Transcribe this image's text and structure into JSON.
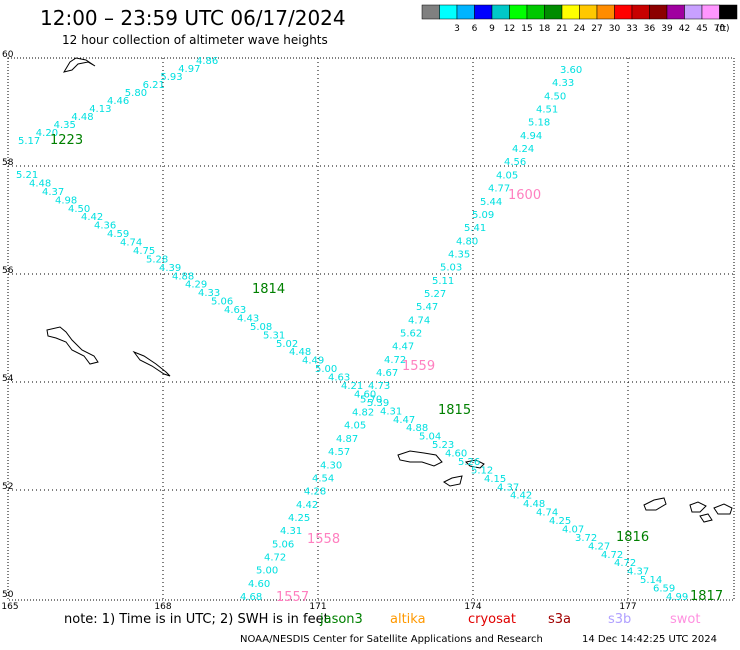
{
  "header": {
    "title": "12:00 – 23:59 UTC 06/17/2024",
    "subtitle": "12 hour collection of altimeter wave heights"
  },
  "legend": {
    "unit": "(ft)",
    "bins": [
      {
        "label": "",
        "color": "#808080"
      },
      {
        "label": "3",
        "color": "#00ffff"
      },
      {
        "label": "6",
        "color": "#00b4ff"
      },
      {
        "label": "9",
        "color": "#0000ff"
      },
      {
        "label": "12",
        "color": "#00c8c8"
      },
      {
        "label": "15",
        "color": "#00ff00"
      },
      {
        "label": "18",
        "color": "#00c800"
      },
      {
        "label": "21",
        "color": "#008c00"
      },
      {
        "label": "24",
        "color": "#ffff00"
      },
      {
        "label": "27",
        "color": "#ffc800"
      },
      {
        "label": "30",
        "color": "#ff8c00"
      },
      {
        "label": "33",
        "color": "#ff0000"
      },
      {
        "label": "36",
        "color": "#c80000"
      },
      {
        "label": "39",
        "color": "#8c0000"
      },
      {
        "label": "42",
        "color": "#a000a0"
      },
      {
        "label": "45",
        "color": "#c8a0ff"
      },
      {
        "label": "70",
        "color": "#ff96ff"
      },
      {
        "label": "",
        "color": "#000000"
      }
    ]
  },
  "map": {
    "x_ticks": [
      "165",
      "168",
      "171",
      "174",
      "177"
    ],
    "y_ticks": [
      "60",
      "58",
      "56",
      "54",
      "52",
      "50"
    ],
    "colors": {
      "wave": "#00e0e0",
      "jason": "#008000",
      "swot": "#ff80c0"
    },
    "track_a": [
      "5.17",
      "4.20",
      "4.35",
      "4.48",
      "4.13",
      "4.46",
      "5.80",
      "6.21",
      "5.93",
      "4.97",
      "4.86"
    ],
    "track_b": [
      "5.21",
      "4.48",
      "4.37",
      "4.98",
      "4.50",
      "4.42",
      "4.36",
      "4.59",
      "4.74",
      "4.75",
      "5.28",
      "4.39",
      "4.88",
      "4.29",
      "4.33",
      "5.06",
      "4.63",
      "4.43",
      "5.08",
      "5.31",
      "5.02",
      "4.48",
      "4.49",
      "5.00",
      "4.63",
      "4.21",
      "4.60",
      "5.39",
      "4.31",
      "4.47",
      "4.88",
      "5.04",
      "5.23",
      "4.60",
      "5.26",
      "5.12",
      "4.15",
      "4.37",
      "4.42",
      "4.48",
      "4.74",
      "4.25",
      "4.07",
      "3.72",
      "4.27",
      "4.72",
      "4.72",
      "4.37",
      "5.14",
      "6.59",
      "4.99"
    ],
    "track_c": [
      "4.68",
      "4.60",
      "5.00",
      "4.72",
      "5.06",
      "4.31",
      "4.25",
      "4.42",
      "4.28",
      "4.54",
      "4.30",
      "4.57",
      "4.87",
      "4.05",
      "4.82",
      "5.70",
      "4.73",
      "4.67",
      "4.72",
      "4.47",
      "5.62",
      "4.74",
      "5.47",
      "5.27",
      "5.11",
      "5.03",
      "4.35",
      "4.80",
      "5.41",
      "5.09",
      "5.44",
      "4.77",
      "4.05",
      "4.56",
      "4.24",
      "4.94",
      "5.18",
      "4.51",
      "4.50",
      "4.33",
      "3.60"
    ],
    "time_labels": [
      {
        "text": "1223",
        "sat": "jason"
      },
      {
        "text": "1814",
        "sat": "jason"
      },
      {
        "text": "1815",
        "sat": "jason"
      },
      {
        "text": "1816",
        "sat": "jason"
      },
      {
        "text": "1817",
        "sat": "jason"
      },
      {
        "text": "1600",
        "sat": "swot"
      },
      {
        "text": "1559",
        "sat": "swot"
      },
      {
        "text": "1558",
        "sat": "swot"
      },
      {
        "text": "1557",
        "sat": "swot"
      }
    ]
  },
  "footer": {
    "note": "note: 1) Time is in UTC; 2) SWH is in feet",
    "satellites": [
      {
        "name": "jason3",
        "color": "#008000"
      },
      {
        "name": "altika",
        "color": "#ff9900"
      },
      {
        "name": "cryosat",
        "color": "#e00000"
      },
      {
        "name": "s3a",
        "color": "#a00000"
      },
      {
        "name": "s3b",
        "color": "#b0a0ff"
      },
      {
        "name": "swot",
        "color": "#ff90e0"
      }
    ],
    "credit": "NOAA/NESDIS Center for Satellite Applications and Research",
    "timestamp": "14 Dec 14:42:25 UTC 2024"
  }
}
